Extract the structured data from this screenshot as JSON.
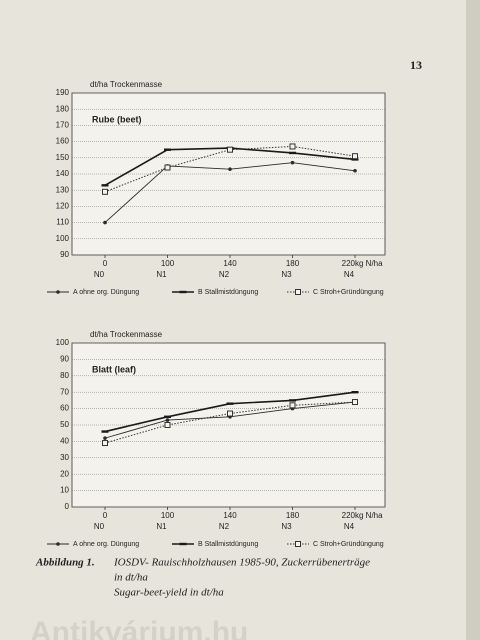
{
  "page_number": "13",
  "chart_data": [
    {
      "type": "line",
      "title": "Rube (beet)",
      "y_label": "dt/ha Trockenmasse",
      "x_label": "kg N/ha",
      "categories": [
        "0",
        "100",
        "140",
        "180",
        "220"
      ],
      "x_sublabels": [
        "N0",
        "N1",
        "N2",
        "N3",
        "N4"
      ],
      "ylim": [
        90,
        190
      ],
      "yticks": [
        90,
        100,
        110,
        120,
        130,
        140,
        150,
        160,
        170,
        180,
        190
      ],
      "grid": true,
      "series": [
        {
          "name": "A ohne org. Düngung",
          "color": "#2a2a2a",
          "line_style": "solid",
          "marker": "dot",
          "values": [
            110,
            145,
            143,
            147,
            142
          ]
        },
        {
          "name": "B Stallmistdüngung",
          "color": "#1a1a1a",
          "line_style": "bold",
          "marker": "dash",
          "values": [
            133,
            155,
            156,
            153,
            149
          ]
        },
        {
          "name": "C Stroh+Gründüngung",
          "color": "#333333",
          "line_style": "dotted",
          "marker": "square",
          "values": [
            129,
            144,
            155,
            157,
            151
          ]
        }
      ]
    },
    {
      "type": "line",
      "title": "Blatt (leaf)",
      "y_label": "dt/ha Trockenmasse",
      "x_label": "kg N/ha",
      "categories": [
        "0",
        "100",
        "140",
        "180",
        "220"
      ],
      "x_sublabels": [
        "N0",
        "N1",
        "N2",
        "N3",
        "N4"
      ],
      "ylim": [
        0,
        100
      ],
      "yticks": [
        0,
        10,
        20,
        30,
        40,
        50,
        60,
        70,
        80,
        90,
        100
      ],
      "grid": true,
      "series": [
        {
          "name": "A ohne org. Düngung",
          "color": "#2a2a2a",
          "line_style": "solid",
          "marker": "dot",
          "values": [
            42,
            53,
            55,
            60,
            64
          ]
        },
        {
          "name": "B Stallmistdüngung",
          "color": "#1a1a1a",
          "line_style": "bold",
          "marker": "dash",
          "values": [
            46,
            55,
            63,
            65,
            70
          ]
        },
        {
          "name": "C Stroh+Gründüngung",
          "color": "#333333",
          "line_style": "dotted",
          "marker": "square",
          "values": [
            39,
            50,
            57,
            62,
            64
          ]
        }
      ]
    }
  ],
  "caption": {
    "label": "Abbildung 1.",
    "line1": "IOSDV- Rauischholzhausen 1985-90, Zuckerrübenerträge",
    "line2": "in dt/ha",
    "line3": "Sugar-beet-yield in dt/ha"
  },
  "watermark": "Antikvárium.hu"
}
